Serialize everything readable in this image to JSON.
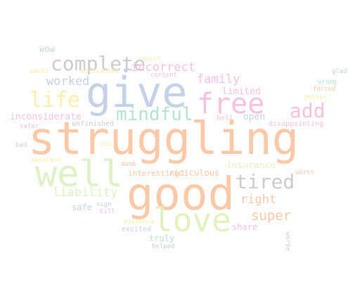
{
  "words": [
    {
      "text": "struggling",
      "color": "#fcc9a8"
    },
    {
      "text": "good",
      "color": "#fcc9a8"
    },
    {
      "text": "give",
      "color": "#c5d1e6"
    },
    {
      "text": "well",
      "color": "#dff1c6"
    },
    {
      "text": "love",
      "color": "#e3f1c1"
    },
    {
      "text": "free",
      "color": "#f6c2df"
    },
    {
      "text": "complete",
      "color": "#cccccc"
    },
    {
      "text": "mindful",
      "color": "#b6e3cd"
    },
    {
      "text": "tired",
      "color": "#cccccc"
    },
    {
      "text": "add",
      "color": "#f6c2df"
    },
    {
      "text": "life",
      "color": "#fcefab"
    },
    {
      "text": "incorrect",
      "color": "#f6c2df"
    },
    {
      "text": "family",
      "color": "#f6c2df"
    },
    {
      "text": "worked",
      "color": "#c5d1e6"
    },
    {
      "text": "liability",
      "color": "#dff1c6"
    },
    {
      "text": "super",
      "color": "#fcc9a8"
    },
    {
      "text": "right",
      "color": "#fcc9a8"
    },
    {
      "text": "insurance",
      "color": "#e3f1c1"
    },
    {
      "text": "inconsiderate",
      "color": "#f6c2df"
    },
    {
      "text": "limited",
      "color": "#f6c2df"
    },
    {
      "text": "open",
      "color": "#c5d1e6"
    },
    {
      "text": "interesting",
      "color": "#fcc9a8"
    },
    {
      "text": "ridiculous",
      "color": "#fcc9a8"
    },
    {
      "text": "wow",
      "color": "#c5d1e6"
    },
    {
      "text": "safe",
      "color": "#c5d1e6"
    },
    {
      "text": "share",
      "color": "#f6c2df"
    },
    {
      "text": "truly",
      "color": "#b6e3cd"
    },
    {
      "text": "excited",
      "color": "#c5d1e6"
    },
    {
      "text": "hell",
      "color": "#f6c2df"
    },
    {
      "text": "unfinished",
      "color": "#cccccc"
    },
    {
      "text": "disappointing",
      "color": "#f6c2df"
    },
    {
      "text": "wrong",
      "color": "#b6e3cd"
    },
    {
      "text": "forced",
      "color": "#fcc9a8"
    },
    {
      "text": "better",
      "color": "#fcefab"
    },
    {
      "text": "glad",
      "color": "#c5d1e6"
    },
    {
      "text": "racist",
      "color": "#fcefab"
    },
    {
      "text": "wants",
      "color": "#fcefab"
    },
    {
      "text": "distracted",
      "color": "#fcefab"
    },
    {
      "text": "content",
      "color": "#f6c2df"
    },
    {
      "text": "safer",
      "color": "#f6c2df"
    },
    {
      "text": "bad",
      "color": "#c5d1e6"
    },
    {
      "text": "sweetest",
      "color": "#fcefab"
    },
    {
      "text": "dumb",
      "color": "#fcc9a8"
    },
    {
      "text": "dis",
      "color": "#fcefab"
    },
    {
      "text": "worst",
      "color": "#fcc9a8"
    },
    {
      "text": "sign",
      "color": "#c5d1e6"
    },
    {
      "text": "kill",
      "color": "#f6c2df"
    },
    {
      "text": "violence",
      "color": "#fcefab"
    },
    {
      "text": "helped",
      "color": "#c5d1e6"
    },
    {
      "text": "worse",
      "color": "#cccccc"
    }
  ]
}
